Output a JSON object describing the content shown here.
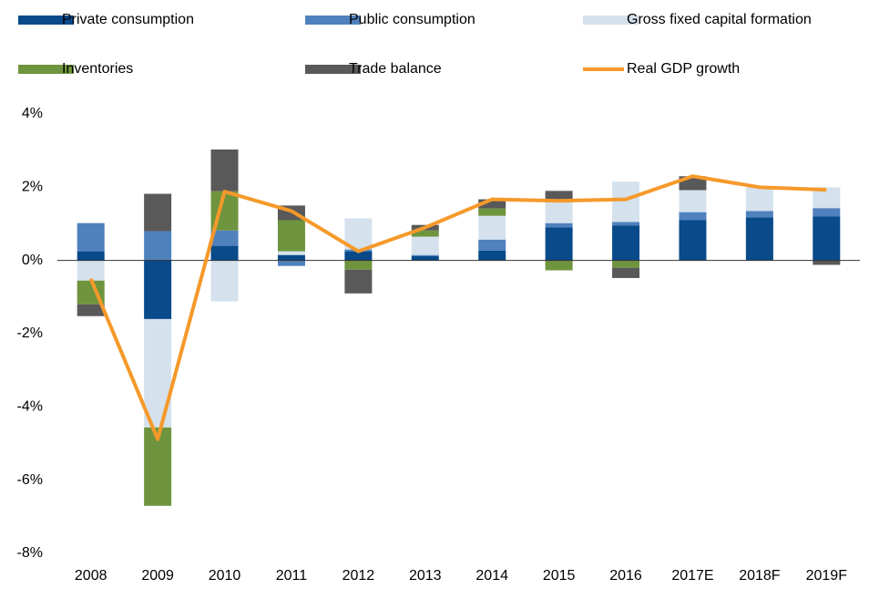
{
  "chart_data": {
    "type": "bar",
    "stacked": true,
    "categories": [
      "2008",
      "2009",
      "2010",
      "2011",
      "2012",
      "2013",
      "2014",
      "2015",
      "2016",
      "2017E",
      "2018F",
      "2019F"
    ],
    "series": [
      {
        "name": "Private consumption",
        "color": "#084a8a",
        "values": [
          0.25,
          -1.6,
          0.4,
          0.15,
          0.25,
          0.12,
          0.27,
          0.9,
          0.95,
          1.1,
          1.18,
          1.2
        ]
      },
      {
        "name": "Public consumption",
        "color": "#4f81bd",
        "values": [
          0.77,
          0.8,
          0.42,
          -0.15,
          0.05,
          0.03,
          0.3,
          0.12,
          0.1,
          0.22,
          0.17,
          0.23
        ]
      },
      {
        "name": "Gross fixed capital formation",
        "color": "#d5e2ed",
        "values": [
          -0.55,
          -2.96,
          -1.12,
          0.1,
          0.85,
          0.5,
          0.65,
          0.6,
          1.1,
          0.6,
          0.65,
          0.57
        ]
      },
      {
        "name": "Inventories",
        "color": "#6f943e",
        "values": [
          -0.65,
          -2.14,
          1.07,
          0.85,
          -0.25,
          0.17,
          0.2,
          -0.27,
          -0.2,
          0,
          0,
          0
        ]
      },
      {
        "name": "Trade balance",
        "color": "#595959",
        "values": [
          -0.32,
          1.02,
          1.14,
          0.4,
          -0.65,
          0.15,
          0.25,
          0.28,
          -0.28,
          0.38,
          0,
          -0.12
        ]
      },
      {
        "name": "Real GDP growth",
        "color": "#f5992a",
        "type": "line",
        "values": [
          -0.5,
          -4.88,
          1.88,
          1.35,
          0.25,
          0.9,
          1.67,
          1.63,
          1.67,
          2.3,
          2.0,
          1.93
        ]
      }
    ],
    "ylim": [
      -8,
      4
    ],
    "yticks": [
      {
        "value": -8,
        "label": "-8%"
      },
      {
        "value": -6,
        "label": "-6%"
      },
      {
        "value": -4,
        "label": "-4%"
      },
      {
        "value": -2,
        "label": "-2%"
      },
      {
        "value": 0,
        "label": "0%"
      },
      {
        "value": 2,
        "label": "2%"
      },
      {
        "value": 4,
        "label": "4%"
      }
    ],
    "grid": false
  }
}
